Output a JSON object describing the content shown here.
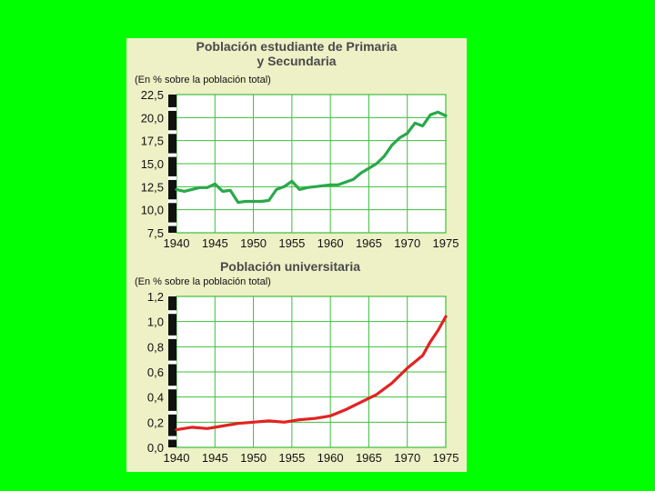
{
  "colors": {
    "background": "#00ff00",
    "panel": "#eef0c6",
    "grid": "#3cbf3c",
    "series_top": "#2aa84a",
    "series_bottom": "#e32222"
  },
  "chart_data": [
    {
      "type": "line",
      "title_line1": "Población estudiante de Primaria",
      "title_line2": "y Secundaria",
      "ylabel": "(En % sobre la población total)",
      "xlabel": "",
      "xlim": [
        1940,
        1975
      ],
      "ylim": [
        7.5,
        22.5
      ],
      "xticks": [
        "1940",
        "1945",
        "1950",
        "1955",
        "1960",
        "1965",
        "1970",
        "1975"
      ],
      "yticks": [
        "22,5",
        "20,0",
        "17,5",
        "15,0",
        "12,5",
        "10,0",
        "7,5"
      ],
      "grid": true,
      "series": [
        {
          "x": [
            1940,
            1941,
            1942,
            1943,
            1944,
            1945,
            1946,
            1947,
            1948,
            1949,
            1950,
            1951,
            1952,
            1953,
            1954,
            1955,
            1956,
            1957,
            1958,
            1959,
            1960,
            1961,
            1962,
            1963,
            1964,
            1965,
            1966,
            1967,
            1968,
            1969,
            1970,
            1971,
            1972,
            1973,
            1974,
            1975
          ],
          "y": [
            12.2,
            12.0,
            12.2,
            12.4,
            12.4,
            12.8,
            12.0,
            12.1,
            10.8,
            10.9,
            10.9,
            10.9,
            11.0,
            12.2,
            12.5,
            13.1,
            12.2,
            12.4,
            12.5,
            12.6,
            12.7,
            12.7,
            13.0,
            13.3,
            14.0,
            14.5,
            15.0,
            15.8,
            17.0,
            17.8,
            18.3,
            19.4,
            19.1,
            20.3,
            20.6,
            20.2
          ]
        }
      ]
    },
    {
      "type": "line",
      "title_line1": "Población universitaria",
      "ylabel": "(En % sobre la población total)",
      "xlabel": "",
      "xlim": [
        1940,
        1975
      ],
      "ylim": [
        0,
        1.2
      ],
      "xticks": [
        "1940",
        "1945",
        "1950",
        "1955",
        "1960",
        "1965",
        "1970",
        "1975"
      ],
      "yticks": [
        "1,2",
        "1,0",
        "0,8",
        "0,6",
        "0,4",
        "0,2",
        "0,0"
      ],
      "grid": true,
      "series": [
        {
          "x": [
            1940,
            1942,
            1944,
            1946,
            1948,
            1950,
            1952,
            1954,
            1956,
            1958,
            1960,
            1962,
            1964,
            1966,
            1968,
            1970,
            1972,
            1973,
            1974,
            1975
          ],
          "y": [
            0.14,
            0.16,
            0.15,
            0.17,
            0.19,
            0.2,
            0.21,
            0.2,
            0.22,
            0.23,
            0.25,
            0.3,
            0.36,
            0.42,
            0.51,
            0.63,
            0.73,
            0.84,
            0.93,
            1.04
          ]
        }
      ]
    }
  ]
}
